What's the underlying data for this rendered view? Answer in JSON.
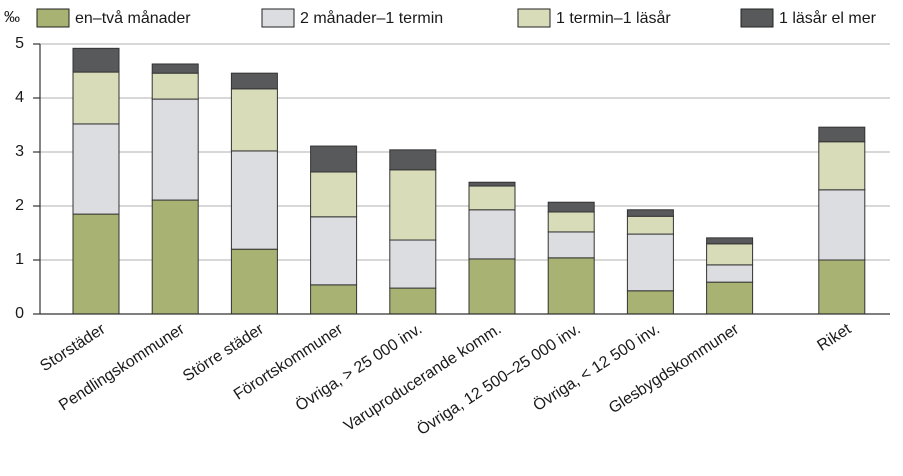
{
  "chart_data": {
    "type": "stacked_bar",
    "y_unit_label": "‰",
    "categories": [
      "Storstäder",
      "Pendlingskommuner",
      "Större städer",
      "Förortskommuner",
      "Övriga, > 25 000 inv.",
      "Varuproducerande komm.",
      "Övriga, 12 500–25 000 inv.",
      "Övriga, < 12 500 inv.",
      "Glesbygdskommuner",
      "Riket"
    ],
    "series": [
      {
        "name": "en–två månader",
        "color": "#a8b373",
        "values": [
          1.85,
          2.11,
          1.2,
          0.54,
          0.48,
          1.02,
          1.04,
          0.43,
          0.59,
          1.0
        ]
      },
      {
        "name": "2 månader–1 termin",
        "color": "#dcdde1",
        "values": [
          1.67,
          1.87,
          1.82,
          1.26,
          0.89,
          0.91,
          0.48,
          1.05,
          0.32,
          1.3
        ]
      },
      {
        "name": "1 termin–1 läsår",
        "color": "#d9dcb9",
        "values": [
          0.96,
          0.48,
          1.15,
          0.83,
          1.3,
          0.44,
          0.37,
          0.33,
          0.39,
          0.89
        ]
      },
      {
        "name": "1 läsår el mer",
        "color": "#58595b",
        "values": [
          0.44,
          0.17,
          0.29,
          0.48,
          0.37,
          0.07,
          0.18,
          0.12,
          0.11,
          0.27
        ]
      }
    ],
    "ylim": [
      0,
      5
    ],
    "yticks": [
      0,
      1,
      2,
      3,
      4,
      5
    ],
    "grid": true
  }
}
